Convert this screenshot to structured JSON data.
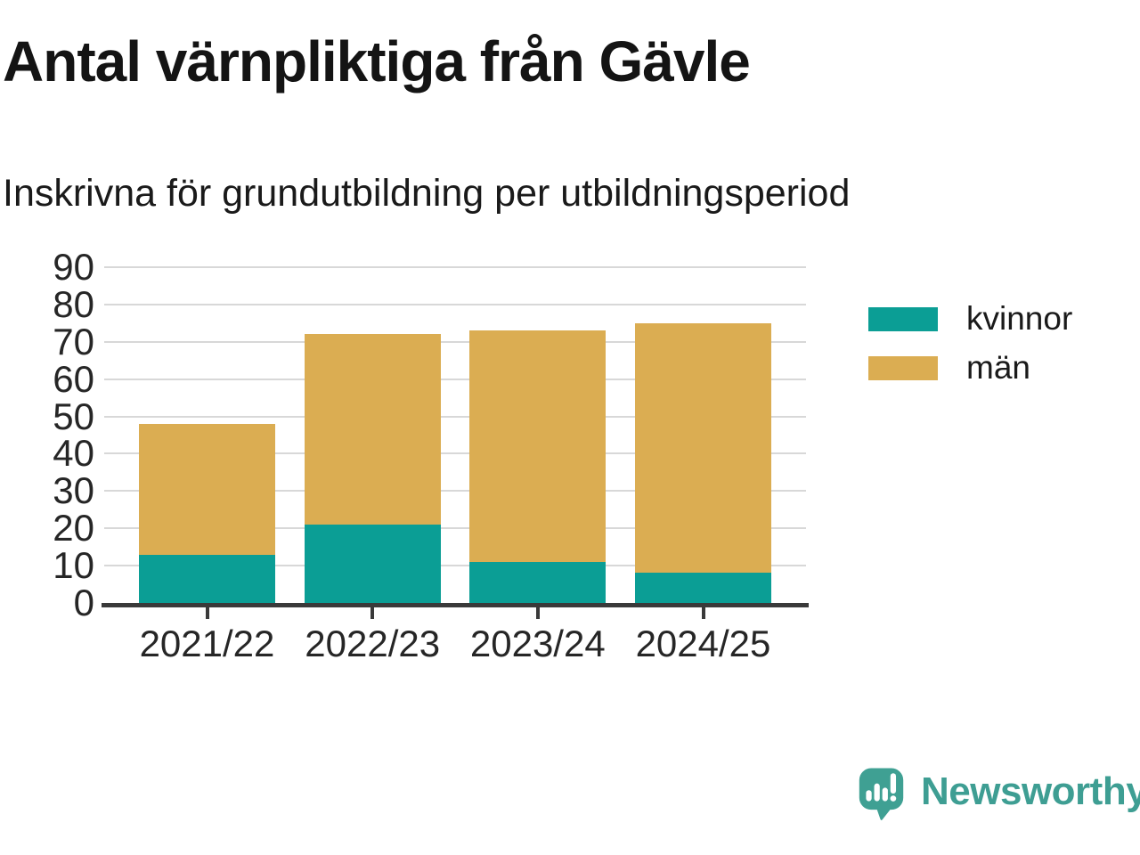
{
  "header": {
    "title": "Antal värnpliktiga från Gävle",
    "subtitle": "Inskrivna för grundutbildning per utbildningsperiod"
  },
  "chart_data": {
    "type": "bar",
    "stacked": true,
    "title": "Antal värnpliktiga från Gävle",
    "subtitle": "Inskrivna för grundutbildning per utbildningsperiod",
    "categories": [
      "2021/22",
      "2022/23",
      "2023/24",
      "2024/25"
    ],
    "series": [
      {
        "name": "kvinnor",
        "color": "#0B9E95",
        "values": [
          13,
          21,
          11,
          8
        ]
      },
      {
        "name": "män",
        "color": "#DBAD52",
        "values": [
          35,
          51,
          62,
          67
        ]
      }
    ],
    "stacked_totals": [
      48,
      72,
      73,
      75
    ],
    "yticks": [
      0,
      10,
      20,
      30,
      40,
      50,
      60,
      70,
      80,
      90
    ],
    "ylim": [
      0,
      90
    ],
    "xlabel": "",
    "ylabel": "",
    "grid": "horizontal",
    "legend_position": "right"
  },
  "legend": {
    "items": [
      {
        "label": "kvinnor",
        "color": "#0B9E95"
      },
      {
        "label": "män",
        "color": "#DBAD52"
      }
    ]
  },
  "branding": {
    "logo_text": "Newsworthy",
    "logo_icon": "bar-chart-speech-bubble-icon",
    "logo_color": "#3E9E93"
  },
  "colors": {
    "background": "#FFFFFF",
    "kvinnor": "#0B9E95",
    "man": "#DBAD52",
    "grid": "#D8D8D8",
    "axis": "#3A3A3A",
    "text": "#141414"
  }
}
